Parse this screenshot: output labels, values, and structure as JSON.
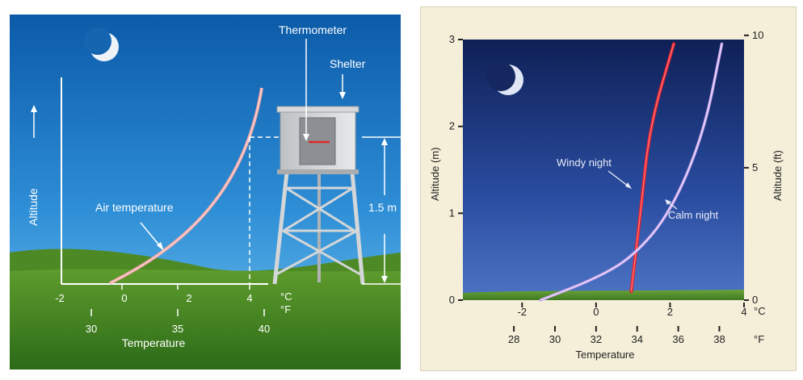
{
  "left": {
    "axis_label": "Altitude",
    "curve_label": "Air temperature",
    "thermometer_label": "Thermometer",
    "shelter_label": "Shelter",
    "height_label": "1.5 m",
    "celsius_ticks": [
      "-2",
      "0",
      "2",
      "4"
    ],
    "celsius_unit": "°C",
    "fahrenheit_ticks": [
      "30",
      "35",
      "40"
    ],
    "fahrenheit_unit": "°F",
    "xlabel": "Temperature"
  },
  "right": {
    "ylabel_left": "Altitude (m)",
    "ylabel_right": "Altitude (ft)",
    "m_ticks": [
      "0",
      "1",
      "2",
      "3"
    ],
    "ft_ticks": [
      "0",
      "5",
      "10"
    ],
    "celsius_ticks": [
      "-2",
      "0",
      "2",
      "4"
    ],
    "celsius_unit": "°C",
    "fahrenheit_ticks": [
      "28",
      "30",
      "32",
      "34",
      "36",
      "38"
    ],
    "fahrenheit_unit": "°F",
    "xlabel": "Temperature",
    "windy_label": "Windy night",
    "calm_label": "Calm night",
    "colors": {
      "windy": "#e8242f",
      "calm": "#c9a6ec"
    }
  },
  "chart_data": {
    "type": "line",
    "xlabel": "Temperature",
    "ylabel": "Altitude (m)",
    "xlim": [
      -3.6,
      4
    ],
    "ylim": [
      0,
      3
    ],
    "series": [
      {
        "name": "Windy night",
        "points": [
          [
            0.95,
            0.1
          ],
          [
            1.2,
            1.0
          ],
          [
            1.45,
            2.0
          ],
          [
            2.1,
            2.95
          ]
        ]
      },
      {
        "name": "Calm night",
        "points": [
          [
            -1.5,
            0.0
          ],
          [
            0.0,
            0.25
          ],
          [
            1.0,
            0.5
          ],
          [
            2.0,
            1.0
          ],
          [
            2.9,
            1.9
          ],
          [
            3.4,
            2.95
          ]
        ]
      }
    ]
  }
}
